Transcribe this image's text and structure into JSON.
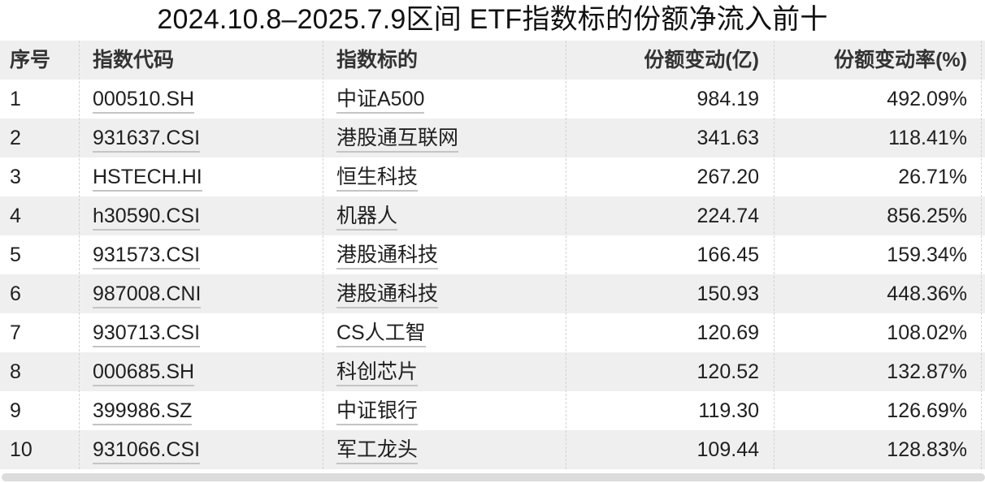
{
  "title": "2024.10.8–2025.7.9区间 ETF指数标的份额净流入前十",
  "columns": [
    "序号",
    "指数代码",
    "指数标的",
    "份额变动(亿)",
    "份额变动率(%)"
  ],
  "rows": [
    {
      "no": "1",
      "code": "000510.SH",
      "name": "中证A500",
      "change": "984.19",
      "rate": "492.09%"
    },
    {
      "no": "2",
      "code": "931637.CSI",
      "name": "港股通互联网",
      "change": "341.63",
      "rate": "118.41%"
    },
    {
      "no": "3",
      "code": "HSTECH.HI",
      "name": "恒生科技",
      "change": "267.20",
      "rate": "26.71%"
    },
    {
      "no": "4",
      "code": "h30590.CSI",
      "name": "机器人",
      "change": "224.74",
      "rate": "856.25%"
    },
    {
      "no": "5",
      "code": "931573.CSI",
      "name": "港股通科技",
      "change": "166.45",
      "rate": "159.34%"
    },
    {
      "no": "6",
      "code": "987008.CNI",
      "name": "港股通科技",
      "change": "150.93",
      "rate": "448.36%"
    },
    {
      "no": "7",
      "code": "930713.CSI",
      "name": "CS人工智",
      "change": "120.69",
      "rate": "108.02%"
    },
    {
      "no": "8",
      "code": "000685.SH",
      "name": "科创芯片",
      "change": "120.52",
      "rate": "132.87%"
    },
    {
      "no": "9",
      "code": "399986.SZ",
      "name": "中证银行",
      "change": "119.30",
      "rate": "126.69%"
    },
    {
      "no": "10",
      "code": "931066.CSI",
      "name": "军工龙头",
      "change": "109.44",
      "rate": "128.83%"
    }
  ]
}
